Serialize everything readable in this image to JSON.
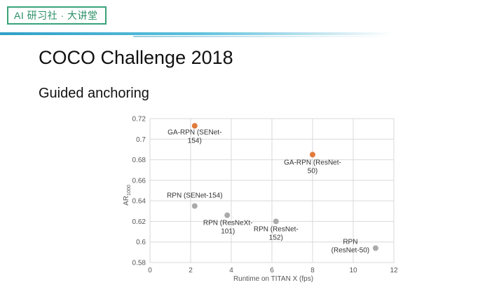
{
  "header": {
    "logo_text": "AI 研习社 · 大讲堂"
  },
  "slide": {
    "title": "COCO Challenge 2018",
    "subtitle": "Guided anchoring"
  },
  "colors": {
    "orange_points": "#e07b3a",
    "gray_points": "#aaaaaa",
    "grid": "#d9d9d9",
    "logo": "#3aa27a"
  },
  "chart_data": {
    "type": "scatter",
    "xlabel": "Runtime on TITAN X (fps)",
    "ylabel_main": "AR",
    "ylabel_sub": "1000",
    "xlim": [
      0,
      12
    ],
    "ylim": [
      0.58,
      0.72
    ],
    "xticks": [
      "0",
      "2",
      "4",
      "6",
      "8",
      "10",
      "12"
    ],
    "yticks": [
      "0.58",
      "0.6",
      "0.62",
      "0.64",
      "0.66",
      "0.68",
      "0.7",
      "0.72"
    ],
    "grid": true,
    "points": [
      {
        "x": 2.2,
        "y": 0.713,
        "color": "#e07b3a",
        "label_lines": [
          "GA-RPN (SENet-",
          "154)"
        ]
      },
      {
        "x": 8.0,
        "y": 0.685,
        "color": "#e07b3a",
        "label_lines": [
          "GA-RPN (ResNet-",
          "50)"
        ]
      },
      {
        "x": 2.2,
        "y": 0.635,
        "color": "#aaaaaa",
        "label_lines": [
          "RPN (SENet-154)"
        ]
      },
      {
        "x": 3.8,
        "y": 0.626,
        "color": "#aaaaaa",
        "label_lines": [
          "RPN (ResNeXt-",
          "101)"
        ]
      },
      {
        "x": 6.2,
        "y": 0.62,
        "color": "#aaaaaa",
        "label_lines": [
          "RPN (ResNet-",
          "152)"
        ]
      },
      {
        "x": 11.1,
        "y": 0.594,
        "color": "#aaaaaa",
        "label_lines": [
          "RPN",
          "(ResNet-50)"
        ]
      }
    ]
  }
}
